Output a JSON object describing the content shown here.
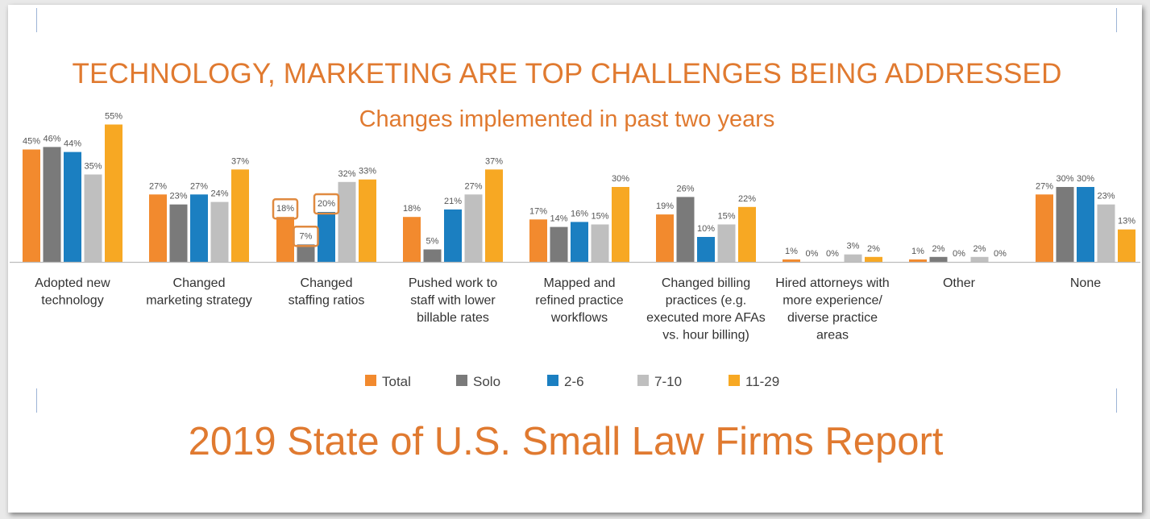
{
  "page": {
    "title": "TECHNOLOGY, MARKETING ARE TOP CHALLENGES BEING ADDRESSED",
    "subtitle": "Changes implemented in past two years",
    "footer": "2019 State of U.S. Small Law Firms Report"
  },
  "colors": {
    "title": "#e07a30",
    "total": "#f28a2e",
    "solo": "#7a7a7a",
    "two_six": "#1b7fc1",
    "seven_ten": "#bfbfbf",
    "eleven_twentynine": "#f7a823",
    "highlight": "#e08a40"
  },
  "chart_data": {
    "type": "bar",
    "title": "Changes implemented in past two years",
    "categories": [
      [
        "Adopted new",
        "technology"
      ],
      [
        "Changed",
        "marketing strategy"
      ],
      [
        "Changed",
        "staffing ratios"
      ],
      [
        "Pushed work to",
        "staff with lower",
        "billable rates"
      ],
      [
        "Mapped and",
        "refined practice",
        "workflows"
      ],
      [
        "Changed billing",
        "practices (e.g.",
        "executed more AFAs",
        "vs. hour billing)"
      ],
      [
        "Hired attorneys with",
        "more experience/",
        "diverse practice",
        "areas"
      ],
      [
        "Other"
      ],
      [
        "None"
      ]
    ],
    "series": [
      {
        "name": "Total",
        "values": [
          45,
          27,
          18,
          18,
          17,
          19,
          1,
          1,
          27
        ]
      },
      {
        "name": "Solo",
        "values": [
          46,
          23,
          7,
          5,
          14,
          26,
          0,
          2,
          30
        ]
      },
      {
        "name": "2-6",
        "values": [
          44,
          27,
          20,
          21,
          16,
          10,
          0,
          0,
          30
        ]
      },
      {
        "name": "7-10",
        "values": [
          35,
          24,
          32,
          27,
          15,
          15,
          3,
          2,
          23
        ]
      },
      {
        "name": "11-29",
        "values": [
          55,
          37,
          33,
          37,
          30,
          22,
          2,
          0,
          13
        ]
      }
    ],
    "value_suffix": "%",
    "ylim": [
      0,
      60
    ],
    "legend_position": "bottom-center",
    "grid": false,
    "highlighted": [
      {
        "category_index": 2,
        "series_index": 0
      },
      {
        "category_index": 2,
        "series_index": 1
      },
      {
        "category_index": 2,
        "series_index": 2
      }
    ]
  }
}
